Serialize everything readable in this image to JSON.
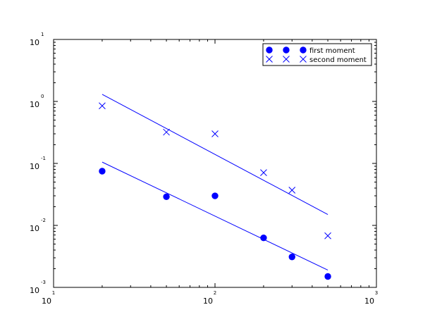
{
  "chart_data": {
    "type": "scatter",
    "xscale": "log",
    "yscale": "log",
    "xlim": [
      10,
      1000
    ],
    "ylim": [
      0.001,
      10
    ],
    "grid": false,
    "legend_position": "top-right",
    "x_ticks": [
      {
        "value": 10,
        "base": "10",
        "exp": "1"
      },
      {
        "value": 100,
        "base": "10",
        "exp": "2"
      },
      {
        "value": 1000,
        "base": "10",
        "exp": "3"
      }
    ],
    "y_ticks": [
      {
        "value": 0.001,
        "base": "10",
        "exp": "-3"
      },
      {
        "value": 0.01,
        "base": "10",
        "exp": "-2"
      },
      {
        "value": 0.1,
        "base": "10",
        "exp": "-1"
      },
      {
        "value": 1,
        "base": "10",
        "exp": "0"
      },
      {
        "value": 10,
        "base": "10",
        "exp": "1"
      }
    ],
    "series": [
      {
        "name": "first moment",
        "marker": "circle",
        "color": "#0000ff",
        "x": [
          20,
          50,
          100,
          200,
          300,
          500
        ],
        "y": [
          0.075,
          0.029,
          0.03,
          0.0063,
          0.0031,
          0.0015
        ],
        "fit": {
          "x": [
            20,
            500
          ],
          "y": [
            0.105,
            0.0019
          ]
        }
      },
      {
        "name": "second moment",
        "marker": "x",
        "color": "#0000ff",
        "x": [
          20,
          50,
          100,
          200,
          300,
          500
        ],
        "y": [
          0.85,
          0.32,
          0.3,
          0.071,
          0.037,
          0.0068
        ],
        "fit": {
          "x": [
            20,
            500
          ],
          "y": [
            1.3,
            0.015
          ]
        }
      }
    ]
  }
}
